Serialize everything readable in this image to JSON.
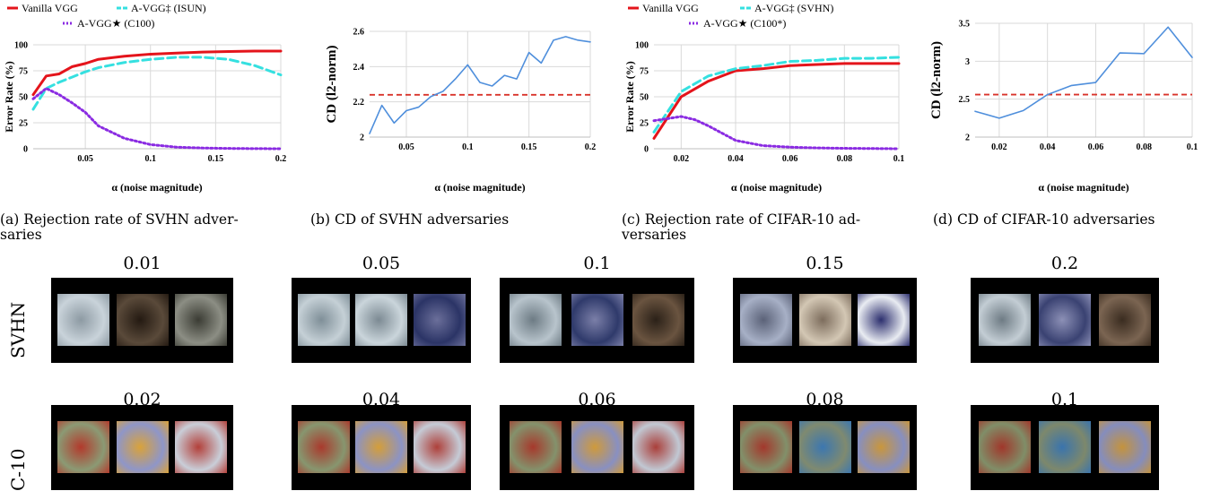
{
  "colors": {
    "vanilla": "#e4141b",
    "avgg_dagger": "#35e0e0",
    "avgg_star": "#8a2be2",
    "cd_line": "#4f8fdc",
    "cd_ref": "#d9342b",
    "grid": "#d9d9d9"
  },
  "chart_data": [
    {
      "id": "a",
      "type": "line",
      "legend": [
        "Vanilla VGG",
        "A-VGG‡ (ISUN)",
        "A-VGG★ (C100)"
      ],
      "xlabel": "α (noise magnitude)",
      "ylabel": "Error Rate (%)",
      "xlim": [
        0.01,
        0.2
      ],
      "ylim": [
        0,
        100
      ],
      "xticks": [
        "0.05",
        "0.1",
        "0.15",
        "0.2"
      ],
      "yticks": [
        "0",
        "25",
        "50",
        "75",
        "100"
      ],
      "series": [
        {
          "name": "Vanilla VGG",
          "x": [
            0.01,
            0.02,
            0.03,
            0.04,
            0.05,
            0.06,
            0.08,
            0.1,
            0.12,
            0.14,
            0.16,
            0.18,
            0.2
          ],
          "y": [
            52,
            70,
            72,
            79,
            82,
            86,
            89,
            91,
            92,
            93,
            93.5,
            94,
            94
          ]
        },
        {
          "name": "A-VGG‡ (ISUN)",
          "x": [
            0.01,
            0.02,
            0.03,
            0.04,
            0.05,
            0.06,
            0.08,
            0.1,
            0.12,
            0.14,
            0.16,
            0.18,
            0.2
          ],
          "y": [
            38,
            58,
            64,
            69,
            74,
            78,
            83,
            86,
            88,
            88,
            86,
            80,
            71
          ]
        },
        {
          "name": "A-VGG★ (C100)",
          "x": [
            0.01,
            0.02,
            0.03,
            0.04,
            0.05,
            0.06,
            0.08,
            0.1,
            0.12,
            0.14,
            0.16,
            0.18,
            0.2
          ],
          "y": [
            48,
            58,
            52,
            44,
            35,
            22,
            10,
            4,
            1.5,
            0.7,
            0.3,
            0.1,
            0
          ]
        }
      ]
    },
    {
      "id": "b",
      "type": "line",
      "xlabel": "α (noise magnitude)",
      "ylabel": "CD (l2-norm)",
      "xlim": [
        0.02,
        0.2
      ],
      "ylim": [
        2,
        2.6
      ],
      "xticks": [
        "0.05",
        "0.1",
        "0.15",
        "0.2"
      ],
      "yticks": [
        "2",
        "2.2",
        "2.4",
        "2.6"
      ],
      "reference_y": 2.24,
      "series": [
        {
          "x": [
            0.02,
            0.03,
            0.04,
            0.05,
            0.06,
            0.07,
            0.08,
            0.09,
            0.1,
            0.11,
            0.12,
            0.13,
            0.14,
            0.15,
            0.16,
            0.17,
            0.18,
            0.19,
            0.2
          ],
          "y": [
            2.02,
            2.18,
            2.08,
            2.15,
            2.17,
            2.23,
            2.26,
            2.33,
            2.41,
            2.31,
            2.29,
            2.35,
            2.33,
            2.48,
            2.42,
            2.55,
            2.57,
            2.55,
            2.54
          ]
        }
      ]
    },
    {
      "id": "c",
      "type": "line",
      "legend": [
        "Vanilla VGG",
        "A-VGG‡ (SVHN)",
        "A-VGG★ (C100*)"
      ],
      "xlabel": "α (noise magnitude)",
      "ylabel": "Error Rate (%)",
      "xlim": [
        0.01,
        0.1
      ],
      "ylim": [
        0,
        100
      ],
      "xticks": [
        "0.02",
        "0.04",
        "0.06",
        "0.08",
        "0.1"
      ],
      "yticks": [
        "0",
        "25",
        "50",
        "75",
        "100"
      ],
      "series": [
        {
          "name": "Vanilla VGG",
          "x": [
            0.01,
            0.02,
            0.03,
            0.04,
            0.05,
            0.06,
            0.07,
            0.08,
            0.09,
            0.1
          ],
          "y": [
            10,
            50,
            65,
            75,
            77,
            80,
            81,
            82,
            82,
            82
          ]
        },
        {
          "name": "A-VGG‡ (SVHN)",
          "x": [
            0.01,
            0.02,
            0.03,
            0.04,
            0.05,
            0.06,
            0.07,
            0.08,
            0.09,
            0.1
          ],
          "y": [
            16,
            55,
            70,
            77,
            80,
            84,
            85,
            87,
            87,
            88
          ]
        },
        {
          "name": "A-VGG★ (C100*)",
          "x": [
            0.01,
            0.015,
            0.02,
            0.025,
            0.03,
            0.04,
            0.05,
            0.06,
            0.07,
            0.08,
            0.1
          ],
          "y": [
            27,
            29,
            31,
            28,
            22,
            8,
            3,
            1.5,
            0.8,
            0.4,
            0
          ]
        }
      ]
    },
    {
      "id": "d",
      "type": "line",
      "xlabel": "α (noise magnitude)",
      "ylabel": "CD (l2-norm)",
      "xlim": [
        0.01,
        0.1
      ],
      "ylim": [
        2,
        3.5
      ],
      "xticks": [
        "0.02",
        "0.04",
        "0.06",
        "0.08",
        "0.1"
      ],
      "yticks": [
        "2",
        "2.5",
        "3",
        "3.5"
      ],
      "reference_y": 2.56,
      "series": [
        {
          "x": [
            0.01,
            0.02,
            0.03,
            0.04,
            0.05,
            0.06,
            0.07,
            0.08,
            0.09,
            0.1
          ],
          "y": [
            2.34,
            2.25,
            2.35,
            2.56,
            2.68,
            2.72,
            3.11,
            3.1,
            3.45,
            3.05
          ]
        }
      ]
    }
  ],
  "captions": [
    "(a) Rejection rate of SVHN adver-\nsaries",
    "(b) CD of SVHN adversaries",
    "(c) Rejection rate of CIFAR-10 ad-\nversaries",
    "(d) CD of CIFAR-10 adversaries"
  ],
  "rows": [
    {
      "label": "SVHN",
      "groups": [
        {
          "title": "0.01",
          "thumbs": [
            [
              "#c9d3da",
              "#8d9aa3"
            ],
            [
              "#5a4a3a",
              "#241a12"
            ],
            [
              "#8c8e84",
              "#3b3c34"
            ]
          ]
        },
        {
          "title": "0.05",
          "thumbs": [
            [
              "#c5d0d6",
              "#7f8f98"
            ],
            [
              "#cad5db",
              "#7c8a93"
            ],
            [
              "#2b3466",
              "#6b6f9a"
            ]
          ]
        },
        {
          "title": "0.1",
          "thumbs": [
            [
              "#b8c4cc",
              "#6d7b84"
            ],
            [
              "#2f3a6b",
              "#7b7fa8"
            ],
            [
              "#6a5440",
              "#2b2118"
            ]
          ]
        },
        {
          "title": "0.15",
          "thumbs": [
            [
              "#a7b0c6",
              "#5b6278"
            ],
            [
              "#d3c7b4",
              "#7d6d5d"
            ],
            [
              "#e9ecf2",
              "#2c2f6e"
            ]
          ]
        },
        {
          "title": "0.2",
          "thumbs": [
            [
              "#c3cdd4",
              "#6e7b84"
            ],
            [
              "#3a4272",
              "#8c90b6"
            ],
            [
              "#7b6552",
              "#3a2c20"
            ]
          ]
        }
      ]
    },
    {
      "label": "C-10",
      "groups": [
        {
          "title": "0.02",
          "thumbs": [
            [
              "#8b9a74",
              "#b23a2c"
            ],
            [
              "#8f96c8",
              "#d9a23a"
            ],
            [
              "#c9ced8",
              "#b3403a"
            ]
          ]
        },
        {
          "title": "0.04",
          "thumbs": [
            [
              "#87966f",
              "#a93a2d"
            ],
            [
              "#8c93c4",
              "#d49e3a"
            ],
            [
              "#c5cbd6",
              "#ae403a"
            ]
          ]
        },
        {
          "title": "0.06",
          "thumbs": [
            [
              "#84926c",
              "#a6392c"
            ],
            [
              "#8990c1",
              "#cf9a3b"
            ],
            [
              "#c1c8d3",
              "#aa3f3a"
            ]
          ]
        },
        {
          "title": "0.08",
          "thumbs": [
            [
              "#82906a",
              "#a3382c"
            ],
            [
              "#7f8a70",
              "#3c77b0"
            ],
            [
              "#878fc0",
              "#c9963c"
            ]
          ]
        },
        {
          "title": "0.1",
          "thumbs": [
            [
              "#808e68",
              "#a0372b"
            ],
            [
              "#7d886c",
              "#3a74ad"
            ],
            [
              "#858dbd",
              "#c4933d"
            ]
          ]
        }
      ]
    }
  ]
}
